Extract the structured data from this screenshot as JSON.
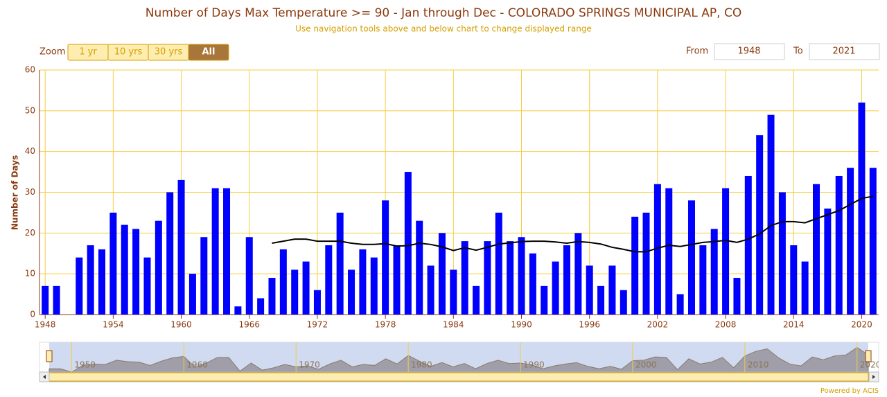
{
  "chart_data": {
    "type": "bar",
    "title": "Number of Days Max Temperature >= 90 - Jan through Dec - COLORADO SPRINGS MUNICIPAL AP, CO",
    "subtitle": "Use navigation tools above and below chart to change displayed range",
    "y_label": "Number of Days",
    "x": [
      1948,
      1949,
      1950,
      1951,
      1952,
      1953,
      1954,
      1955,
      1956,
      1957,
      1958,
      1959,
      1960,
      1961,
      1962,
      1963,
      1964,
      1965,
      1966,
      1967,
      1968,
      1969,
      1970,
      1971,
      1972,
      1973,
      1974,
      1975,
      1976,
      1977,
      1978,
      1979,
      1980,
      1981,
      1982,
      1983,
      1984,
      1985,
      1986,
      1987,
      1988,
      1989,
      1990,
      1991,
      1992,
      1993,
      1994,
      1995,
      1996,
      1997,
      1998,
      1999,
      2000,
      2001,
      2002,
      2003,
      2004,
      2005,
      2006,
      2007,
      2008,
      2009,
      2010,
      2011,
      2012,
      2013,
      2014,
      2015,
      2016,
      2017,
      2018,
      2019,
      2020,
      2021
    ],
    "series": [
      {
        "type": "bar",
        "color": "#0000ff",
        "values": [
          7,
          7,
          0,
          14,
          17,
          16,
          25,
          22,
          21,
          14,
          23,
          30,
          33,
          10,
          19,
          31,
          31,
          2,
          19,
          4,
          9,
          16,
          11,
          13,
          6,
          17,
          25,
          11,
          16,
          14,
          28,
          17,
          35,
          23,
          12,
          20,
          11,
          18,
          7,
          18,
          25,
          18,
          19,
          15,
          7,
          13,
          17,
          20,
          12,
          7,
          12,
          6,
          24,
          25,
          32,
          31,
          5,
          28,
          17,
          21,
          31,
          9,
          34,
          44,
          49,
          30,
          17,
          13,
          32,
          26,
          34,
          36,
          52,
          36
        ]
      },
      {
        "type": "line",
        "color": "#000000",
        "values": [
          null,
          null,
          null,
          null,
          null,
          null,
          null,
          null,
          null,
          null,
          null,
          null,
          null,
          null,
          null,
          null,
          null,
          null,
          null,
          null,
          17.5,
          18,
          18.5,
          18.5,
          18,
          18,
          18,
          17.5,
          17.2,
          17.2,
          17.4,
          16.8,
          16.9,
          17.5,
          17.2,
          16.6,
          15.7,
          16.4,
          15.8,
          16.5,
          17.3,
          17.6,
          17.9,
          18,
          18,
          17.8,
          17.5,
          17.9,
          17.7,
          17.3,
          16.5,
          16,
          15.4,
          15.4,
          16.3,
          17,
          16.7,
          17.2,
          17.7,
          17.9,
          18.2,
          17.7,
          18.5,
          19.8,
          21.8,
          22.8,
          22.8,
          22.5,
          23.5,
          24.5,
          25.5,
          27,
          28.5,
          29
        ]
      }
    ],
    "xlim": [
      1947.5,
      2021.5
    ],
    "xticks": [
      1948,
      1954,
      1960,
      1966,
      1972,
      1978,
      1984,
      1990,
      1996,
      2002,
      2008,
      2014,
      2020
    ],
    "ylim": [
      0,
      60
    ],
    "yticks": [
      0,
      10,
      20,
      30,
      40,
      50,
      60
    ],
    "grid": true,
    "zoom": {
      "label": "Zoom",
      "buttons": [
        "1 yr",
        "10 yrs",
        "30 yrs",
        "All"
      ],
      "active": 3
    },
    "range": {
      "from_label": "From",
      "from": "1948",
      "to_label": "To",
      "to": "2021"
    },
    "navigator": {
      "xlim": [
        1948,
        2021
      ],
      "xticks": [
        1950,
        1960,
        1970,
        1980,
        1990,
        2000,
        2010,
        2020
      ]
    },
    "credit": "Powered by ACIS"
  }
}
